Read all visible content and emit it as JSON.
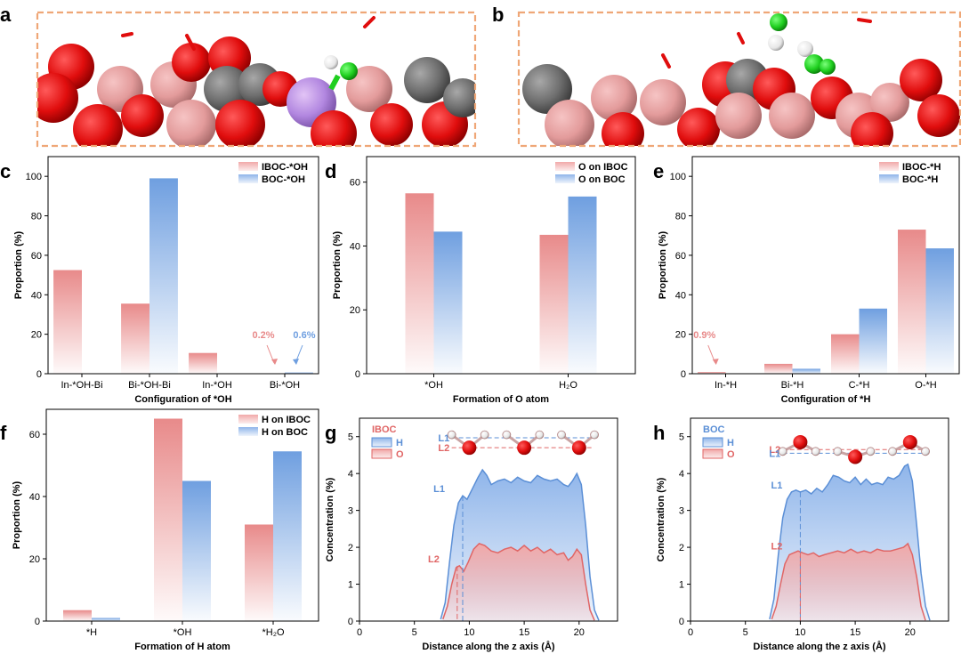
{
  "colors": {
    "red": "#e88a8a",
    "blue": "#6f9fe0",
    "red_line": "#e06666",
    "blue_line": "#5b8fd6",
    "frame": "#efa777"
  },
  "snapshots": [
    {
      "label": "a"
    },
    {
      "label": "b"
    }
  ],
  "chart_data": [
    {
      "panel": "c",
      "type": "bar",
      "categories": [
        "In-*OH-Bi",
        "Bi-*OH-Bi",
        "In-*OH",
        "Bi-*OH"
      ],
      "series": [
        {
          "name": "IBOC-*OH",
          "values": [
            52.5,
            35.5,
            10.5,
            0.2
          ]
        },
        {
          "name": "BOC-*OH",
          "values": [
            0,
            99,
            0,
            0.6
          ]
        }
      ],
      "xlabel": "Configuration of *OH",
      "ylabel": "Proportion (%)",
      "ylim": [
        0,
        110
      ],
      "yticks": [
        0,
        20,
        40,
        60,
        80,
        100
      ],
      "annotations": [
        {
          "text": "0.2%",
          "series": 0
        },
        {
          "text": "0.6%",
          "series": 1
        }
      ]
    },
    {
      "panel": "d",
      "type": "bar",
      "categories": [
        "*OH",
        "H₂O"
      ],
      "series": [
        {
          "name": "O on IBOC",
          "values": [
            56.5,
            43.5
          ]
        },
        {
          "name": "O on BOC",
          "values": [
            44.5,
            55.5
          ]
        }
      ],
      "xlabel": "Formation of O atom",
      "ylabel": "Proportion (%)",
      "ylim": [
        0,
        68
      ],
      "yticks": [
        0,
        20,
        40,
        60
      ]
    },
    {
      "panel": "e",
      "type": "bar",
      "categories": [
        "In-*H",
        "Bi-*H",
        "C-*H",
        "O-*H"
      ],
      "series": [
        {
          "name": "IBOC-*H",
          "values": [
            0.9,
            5,
            20,
            73
          ]
        },
        {
          "name": "BOC-*H",
          "values": [
            0,
            2.5,
            33,
            63.5
          ]
        }
      ],
      "xlabel": "Configuration of *H",
      "ylabel": "Proportion (%)",
      "ylim": [
        0,
        110
      ],
      "yticks": [
        0,
        20,
        40,
        60,
        80,
        100
      ],
      "annotations": [
        {
          "text": "0.9%",
          "series": 0
        }
      ]
    },
    {
      "panel": "f",
      "type": "bar",
      "categories": [
        "*H",
        "*OH",
        "*H₂O"
      ],
      "series": [
        {
          "name": "H on IBOC",
          "values": [
            3.5,
            65,
            31
          ]
        },
        {
          "name": "H on BOC",
          "values": [
            1,
            45,
            54.5
          ]
        }
      ],
      "xlabel": "Formation of H atom",
      "ylabel": "Proportion (%)",
      "ylim": [
        0,
        68
      ],
      "yticks": [
        0,
        20,
        40,
        60
      ]
    },
    {
      "panel": "g",
      "type": "area",
      "title": "IBOC",
      "xlabel": "Distance along the z axis (Å)",
      "ylabel": "Concentration (%)",
      "xlim": [
        0,
        23.5
      ],
      "ylim": [
        0,
        5.5
      ],
      "xticks": [
        0,
        5,
        10,
        15,
        20
      ],
      "yticks": [
        0,
        1,
        2,
        3,
        4,
        5
      ],
      "series": [
        {
          "name": "H",
          "x": [
            7.4,
            7.8,
            8.2,
            8.6,
            9.0,
            9.4,
            9.8,
            10.3,
            10.8,
            11.2,
            11.6,
            12.0,
            12.6,
            13.2,
            13.8,
            14.4,
            15.0,
            15.6,
            16.2,
            16.8,
            17.4,
            18.0,
            18.6,
            19.0,
            19.4,
            19.8,
            20.2,
            20.6,
            21.0,
            21.4,
            21.8
          ],
          "y": [
            0.05,
            0.5,
            1.6,
            2.6,
            3.2,
            3.4,
            3.3,
            3.6,
            3.9,
            4.1,
            3.95,
            3.7,
            3.8,
            3.85,
            3.75,
            3.9,
            3.8,
            3.75,
            3.95,
            3.85,
            3.8,
            3.85,
            3.7,
            3.65,
            3.8,
            4.0,
            3.7,
            2.6,
            1.2,
            0.3,
            0.02
          ]
        },
        {
          "name": "O",
          "x": [
            7.6,
            8.0,
            8.4,
            8.8,
            9.1,
            9.5,
            9.9,
            10.4,
            10.9,
            11.4,
            12.0,
            12.6,
            13.2,
            13.8,
            14.4,
            15.0,
            15.6,
            16.2,
            16.8,
            17.4,
            18.0,
            18.6,
            19.0,
            19.4,
            19.8,
            20.2,
            20.6,
            21.0,
            21.4
          ],
          "y": [
            0.05,
            0.4,
            1.0,
            1.45,
            1.5,
            1.35,
            1.6,
            1.95,
            2.1,
            2.05,
            1.9,
            1.85,
            1.95,
            2.0,
            1.9,
            2.05,
            1.9,
            2.0,
            1.85,
            1.95,
            1.8,
            1.85,
            1.65,
            1.75,
            1.95,
            1.8,
            1.0,
            0.3,
            0.02
          ]
        }
      ],
      "levels": [
        {
          "label": "L1",
          "y": 4.97,
          "series": "H"
        },
        {
          "label": "L2",
          "y": 4.7,
          "series": "O"
        }
      ],
      "markers": [
        {
          "label": "L1",
          "x": 9.4,
          "y": 3.4,
          "series": "H"
        },
        {
          "label": "L2",
          "x": 8.9,
          "y": 1.5,
          "series": "O"
        }
      ]
    },
    {
      "panel": "h",
      "type": "area",
      "title": "BOC",
      "xlabel": "Distance along the z axis (Å)",
      "ylabel": "Concentration (%)",
      "xlim": [
        0,
        23.5
      ],
      "ylim": [
        0,
        5.5
      ],
      "xticks": [
        0,
        5,
        10,
        15,
        20
      ],
      "yticks": [
        0,
        1,
        2,
        3,
        4,
        5
      ],
      "series": [
        {
          "name": "H",
          "x": [
            7.2,
            7.6,
            8.0,
            8.4,
            8.8,
            9.2,
            9.6,
            10.0,
            10.5,
            11.0,
            11.5,
            12.0,
            12.5,
            13.0,
            13.5,
            14.0,
            14.5,
            15.0,
            15.5,
            16.0,
            16.5,
            17.0,
            17.5,
            18.0,
            18.5,
            19.0,
            19.5,
            19.8,
            20.2,
            20.6,
            21.0,
            21.4,
            21.8
          ],
          "y": [
            0.05,
            0.6,
            1.8,
            2.8,
            3.3,
            3.5,
            3.55,
            3.5,
            3.55,
            3.45,
            3.6,
            3.5,
            3.7,
            3.95,
            3.9,
            3.8,
            3.75,
            3.9,
            3.7,
            3.85,
            3.7,
            3.75,
            3.7,
            3.9,
            3.85,
            3.95,
            4.2,
            4.25,
            3.8,
            2.6,
            1.3,
            0.4,
            0.02
          ]
        },
        {
          "name": "O",
          "x": [
            7.4,
            7.8,
            8.2,
            8.6,
            9.0,
            9.4,
            9.8,
            10.2,
            10.7,
            11.2,
            11.7,
            12.2,
            12.8,
            13.4,
            14.0,
            14.6,
            15.2,
            15.8,
            16.4,
            17.0,
            17.6,
            18.2,
            18.8,
            19.4,
            19.8,
            20.2,
            20.6,
            21.0,
            21.4
          ],
          "y": [
            0.05,
            0.4,
            1.0,
            1.55,
            1.8,
            1.85,
            1.9,
            1.85,
            1.8,
            1.85,
            1.75,
            1.8,
            1.85,
            1.9,
            1.85,
            1.95,
            1.85,
            1.9,
            1.85,
            1.95,
            1.9,
            1.9,
            1.95,
            2.0,
            2.1,
            1.8,
            1.2,
            0.4,
            0.02
          ]
        }
      ],
      "levels": [
        {
          "label": "L2",
          "y": 4.65,
          "series": "O"
        },
        {
          "label": "L1",
          "y": 4.55,
          "series": "H"
        }
      ],
      "markers": [
        {
          "label": "L1",
          "x": 10.0,
          "y": 3.5,
          "series": "H"
        },
        {
          "label": "L2",
          "x": 10.0,
          "y": 1.85,
          "series": "O"
        }
      ]
    }
  ]
}
